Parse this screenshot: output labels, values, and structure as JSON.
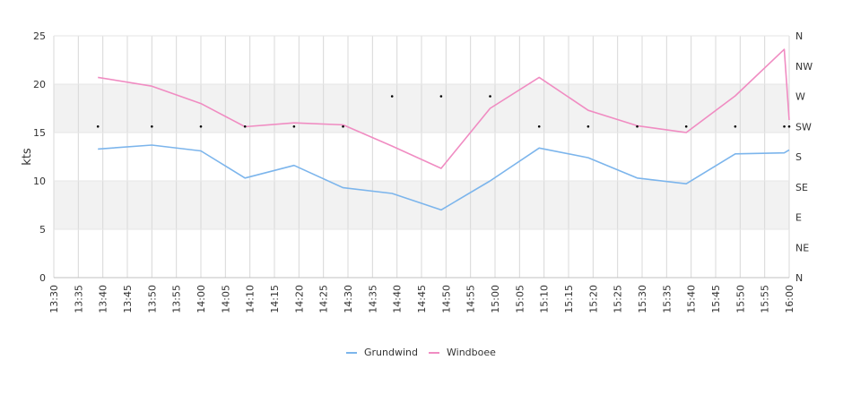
{
  "chart_data": {
    "type": "line",
    "ylabel": "kts",
    "ylim": [
      0,
      25
    ],
    "y_ticks": [
      "0",
      "5",
      "10",
      "15",
      "20",
      "25"
    ],
    "x_ticks": [
      "13:30",
      "13:35",
      "13:40",
      "13:45",
      "13:50",
      "13:55",
      "14:00",
      "14:05",
      "14:10",
      "14:15",
      "14:20",
      "14:25",
      "14:30",
      "14:35",
      "14:40",
      "14:45",
      "14:50",
      "14:55",
      "15:00",
      "15:05",
      "15:10",
      "15:15",
      "15:20",
      "15:25",
      "15:30",
      "15:35",
      "15:40",
      "15:45",
      "15:50",
      "15:55",
      "16:00"
    ],
    "x_range": [
      "13:30",
      "16:00"
    ],
    "y2_ticks": [
      "N",
      "NE",
      "E",
      "SE",
      "S",
      "SW",
      "W",
      "NW",
      "N"
    ],
    "banded_background": true,
    "legend_position": "bottom",
    "series": [
      {
        "name": "Grundwind",
        "color": "#7cb5ec",
        "x": [
          "13:39",
          "13:50",
          "14:00",
          "14:09",
          "14:19",
          "14:29",
          "14:39",
          "14:49",
          "14:59",
          "15:09",
          "15:19",
          "15:29",
          "15:39",
          "15:49",
          "15:59",
          "16:00"
        ],
        "values": [
          13.3,
          13.7,
          13.1,
          10.3,
          11.6,
          9.3,
          8.7,
          7.0,
          10.0,
          13.4,
          12.4,
          10.3,
          9.7,
          12.8,
          12.9,
          13.2
        ]
      },
      {
        "name": "Windboee",
        "color": "#f08cc2",
        "x": [
          "13:39",
          "13:50",
          "14:00",
          "14:09",
          "14:19",
          "14:29",
          "14:39",
          "14:49",
          "14:59",
          "15:09",
          "15:19",
          "15:29",
          "15:39",
          "15:49",
          "15:59",
          "16:00"
        ],
        "values": [
          20.7,
          19.8,
          18.0,
          15.6,
          16.0,
          15.8,
          13.6,
          11.3,
          17.5,
          20.7,
          17.3,
          15.7,
          15.0,
          18.8,
          23.6,
          16.3
        ]
      }
    ],
    "direction_points": {
      "x": [
        "13:39",
        "13:50",
        "14:00",
        "14:09",
        "14:19",
        "14:29",
        "14:39",
        "14:49",
        "14:59",
        "15:09",
        "15:19",
        "15:29",
        "15:39",
        "15:49",
        "15:59",
        "16:00"
      ],
      "values": [
        "SW",
        "SW",
        "SW",
        "SW",
        "SW",
        "SW",
        "W",
        "W",
        "W",
        "SW",
        "SW",
        "SW",
        "SW",
        "SW",
        "SW",
        "SW"
      ]
    }
  }
}
